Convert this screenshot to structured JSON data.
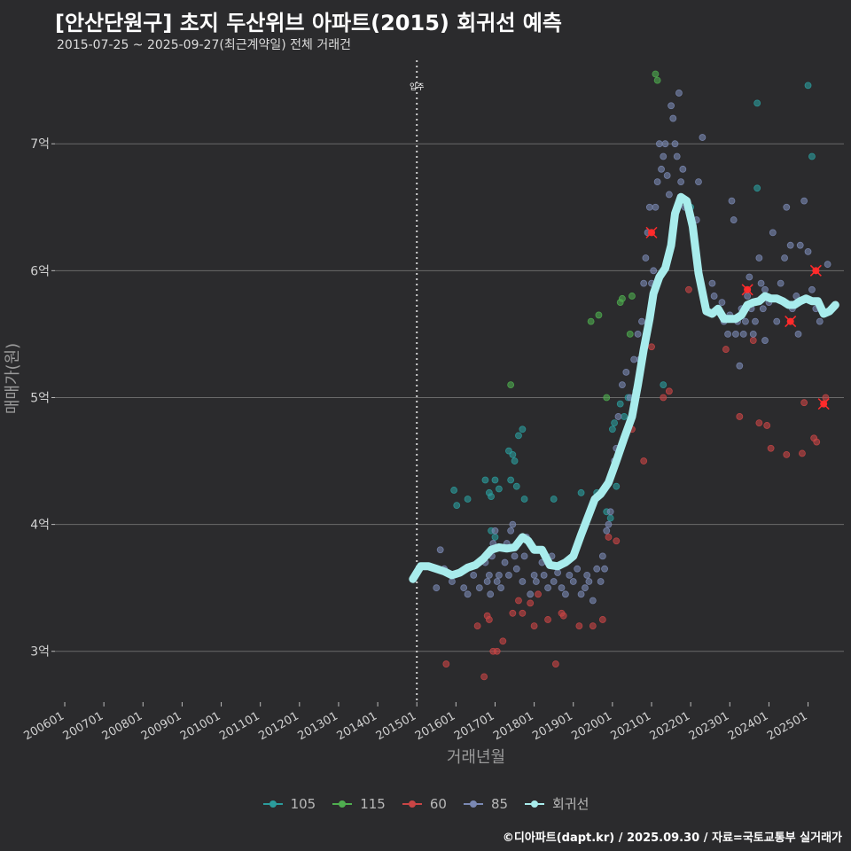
{
  "header": {
    "title": "[안산단원구] 초지 두산위브 아파트(2015) 회귀선 예측",
    "subtitle": "2015-07-25 ~ 2025-09-27(최근계약일) 전체 거래건"
  },
  "caption": "©디아파트(dapt.kr) / 2025.09.30 / 자료=국토교통부 실거래가",
  "colors": {
    "background": "#2b2b2d",
    "grid": "#6a6a6a",
    "regression": "#a8ecec",
    "highlight_x": "#ff2b2b"
  },
  "chart_data": {
    "type": "scatter",
    "xlabel": "거래년월",
    "ylabel": "매매가(원)",
    "x_tick_labels": [
      "200601",
      "200701",
      "200801",
      "200901",
      "201001",
      "201101",
      "201201",
      "201301",
      "201401",
      "201501",
      "201601",
      "201701",
      "201801",
      "201901",
      "202001",
      "202101",
      "202201",
      "202301",
      "202401",
      "202501"
    ],
    "y_tick_labels": [
      "3억",
      "4억",
      "5억",
      "6억",
      "7억"
    ],
    "y_ticks": [
      3,
      4,
      5,
      6,
      7
    ],
    "xlim": [
      "2005-10",
      "2025-12"
    ],
    "ylim": [
      2.6,
      7.7
    ],
    "annotation": {
      "label": "입주",
      "x": 2015.0
    },
    "legend_position": "bottom",
    "series": [
      {
        "name": "105",
        "color": "#2b9c9c",
        "points": [
          [
            2015.95,
            4.27
          ],
          [
            2016.3,
            4.2
          ],
          [
            2016.02,
            4.15
          ],
          [
            2016.75,
            4.35
          ],
          [
            2016.85,
            4.25
          ],
          [
            2016.9,
            4.22
          ],
          [
            2017.0,
            4.35
          ],
          [
            2017.1,
            4.28
          ],
          [
            2017.35,
            4.58
          ],
          [
            2017.45,
            4.55
          ],
          [
            2017.5,
            4.5
          ],
          [
            2017.55,
            4.3
          ],
          [
            2017.6,
            4.7
          ],
          [
            2017.7,
            4.75
          ],
          [
            2017.75,
            4.2
          ],
          [
            2017.4,
            4.35
          ],
          [
            2018.5,
            4.2
          ],
          [
            2019.2,
            4.25
          ],
          [
            2019.6,
            4.25
          ],
          [
            2019.85,
            4.1
          ],
          [
            2020.0,
            4.75
          ],
          [
            2020.05,
            4.8
          ],
          [
            2020.2,
            4.95
          ],
          [
            2020.3,
            4.85
          ],
          [
            2020.4,
            5.0
          ],
          [
            2020.6,
            5.05
          ],
          [
            2021.3,
            5.1
          ],
          [
            2022.0,
            6.5
          ],
          [
            2023.7,
            6.65
          ],
          [
            2023.7,
            7.32
          ],
          [
            2025.0,
            7.46
          ],
          [
            2025.1,
            6.9
          ],
          [
            2016.9,
            3.95
          ],
          [
            2017.0,
            3.9
          ],
          [
            2019.95,
            4.05
          ],
          [
            2020.1,
            4.3
          ]
        ]
      },
      {
        "name": "115",
        "color": "#4fae4f",
        "points": [
          [
            2017.4,
            5.1
          ],
          [
            2019.45,
            5.6
          ],
          [
            2019.65,
            5.65
          ],
          [
            2020.2,
            5.75
          ],
          [
            2020.25,
            5.78
          ],
          [
            2020.5,
            5.8
          ],
          [
            2021.1,
            7.55
          ],
          [
            2021.15,
            7.5
          ],
          [
            2019.85,
            5.0
          ],
          [
            2020.45,
            5.5
          ]
        ]
      },
      {
        "name": "60",
        "color": "#c84545",
        "points": [
          [
            2015.75,
            2.9
          ],
          [
            2016.55,
            3.2
          ],
          [
            2016.72,
            2.8
          ],
          [
            2016.8,
            3.28
          ],
          [
            2016.85,
            3.25
          ],
          [
            2016.95,
            3.0
          ],
          [
            2017.05,
            3.0
          ],
          [
            2017.2,
            3.08
          ],
          [
            2017.45,
            3.3
          ],
          [
            2017.6,
            3.4
          ],
          [
            2017.7,
            3.3
          ],
          [
            2017.9,
            3.38
          ],
          [
            2018.0,
            3.2
          ],
          [
            2018.1,
            3.45
          ],
          [
            2018.35,
            3.25
          ],
          [
            2018.55,
            2.9
          ],
          [
            2018.7,
            3.3
          ],
          [
            2018.75,
            3.28
          ],
          [
            2019.15,
            3.2
          ],
          [
            2019.5,
            3.2
          ],
          [
            2019.75,
            3.25
          ],
          [
            2019.9,
            3.9
          ],
          [
            2020.1,
            3.87
          ],
          [
            2020.5,
            4.75
          ],
          [
            2020.8,
            4.5
          ],
          [
            2021.0,
            5.4
          ],
          [
            2021.3,
            5.0
          ],
          [
            2021.45,
            5.05
          ],
          [
            2021.95,
            5.85
          ],
          [
            2023.25,
            4.85
          ],
          [
            2023.75,
            4.8
          ],
          [
            2023.95,
            4.78
          ],
          [
            2024.05,
            4.6
          ],
          [
            2024.45,
            4.55
          ],
          [
            2024.85,
            4.56
          ],
          [
            2024.9,
            4.96
          ],
          [
            2025.15,
            4.68
          ],
          [
            2025.22,
            4.65
          ],
          [
            2025.45,
            5.0
          ],
          [
            2022.9,
            5.38
          ],
          [
            2023.6,
            5.45
          ]
        ]
      },
      {
        "name": "85",
        "color": "#7a88b3",
        "points": [
          [
            2015.5,
            3.5
          ],
          [
            2015.6,
            3.8
          ],
          [
            2015.7,
            3.65
          ],
          [
            2015.9,
            3.55
          ],
          [
            2016.2,
            3.5
          ],
          [
            2016.3,
            3.45
          ],
          [
            2016.45,
            3.6
          ],
          [
            2016.6,
            3.5
          ],
          [
            2016.75,
            3.7
          ],
          [
            2016.8,
            3.55
          ],
          [
            2016.85,
            3.6
          ],
          [
            2016.88,
            3.45
          ],
          [
            2016.92,
            3.75
          ],
          [
            2016.95,
            3.85
          ],
          [
            2017.0,
            3.95
          ],
          [
            2017.05,
            3.55
          ],
          [
            2017.1,
            3.6
          ],
          [
            2017.15,
            3.5
          ],
          [
            2017.25,
            3.7
          ],
          [
            2017.3,
            3.85
          ],
          [
            2017.35,
            3.6
          ],
          [
            2017.4,
            3.95
          ],
          [
            2017.45,
            4.0
          ],
          [
            2017.5,
            3.75
          ],
          [
            2017.55,
            3.65
          ],
          [
            2017.6,
            3.85
          ],
          [
            2017.7,
            3.55
          ],
          [
            2017.75,
            3.75
          ],
          [
            2017.8,
            3.9
          ],
          [
            2017.9,
            3.45
          ],
          [
            2018.0,
            3.6
          ],
          [
            2018.05,
            3.55
          ],
          [
            2018.1,
            3.8
          ],
          [
            2018.2,
            3.7
          ],
          [
            2018.25,
            3.6
          ],
          [
            2018.35,
            3.5
          ],
          [
            2018.45,
            3.75
          ],
          [
            2018.5,
            3.55
          ],
          [
            2018.6,
            3.62
          ],
          [
            2018.7,
            3.5
          ],
          [
            2018.8,
            3.45
          ],
          [
            2018.9,
            3.6
          ],
          [
            2019.0,
            3.55
          ],
          [
            2019.1,
            3.65
          ],
          [
            2019.2,
            3.45
          ],
          [
            2019.3,
            3.5
          ],
          [
            2019.35,
            3.6
          ],
          [
            2019.4,
            3.55
          ],
          [
            2019.5,
            3.4
          ],
          [
            2019.6,
            3.65
          ],
          [
            2019.7,
            3.55
          ],
          [
            2019.75,
            3.75
          ],
          [
            2019.8,
            3.65
          ],
          [
            2019.85,
            3.95
          ],
          [
            2019.9,
            4.0
          ],
          [
            2019.95,
            4.1
          ],
          [
            2020.05,
            4.5
          ],
          [
            2020.1,
            4.6
          ],
          [
            2020.15,
            4.85
          ],
          [
            2020.25,
            5.1
          ],
          [
            2020.35,
            5.2
          ],
          [
            2020.45,
            5.0
          ],
          [
            2020.55,
            5.3
          ],
          [
            2020.65,
            5.5
          ],
          [
            2020.7,
            5.3
          ],
          [
            2020.75,
            5.6
          ],
          [
            2020.8,
            5.9
          ],
          [
            2020.85,
            6.1
          ],
          [
            2020.9,
            6.3
          ],
          [
            2020.95,
            6.5
          ],
          [
            2021.0,
            5.9
          ],
          [
            2021.05,
            6.0
          ],
          [
            2021.1,
            6.5
          ],
          [
            2021.15,
            6.7
          ],
          [
            2021.2,
            7.0
          ],
          [
            2021.25,
            6.8
          ],
          [
            2021.3,
            6.9
          ],
          [
            2021.35,
            7.0
          ],
          [
            2021.4,
            6.75
          ],
          [
            2021.45,
            6.6
          ],
          [
            2021.5,
            7.3
          ],
          [
            2021.55,
            7.2
          ],
          [
            2021.6,
            7.0
          ],
          [
            2021.65,
            6.9
          ],
          [
            2021.7,
            7.4
          ],
          [
            2021.75,
            6.7
          ],
          [
            2021.8,
            6.8
          ],
          [
            2021.85,
            6.5
          ],
          [
            2022.15,
            6.4
          ],
          [
            2022.2,
            6.7
          ],
          [
            2022.3,
            7.05
          ],
          [
            2022.55,
            5.9
          ],
          [
            2022.6,
            5.8
          ],
          [
            2022.7,
            5.7
          ],
          [
            2022.8,
            5.75
          ],
          [
            2022.85,
            5.6
          ],
          [
            2022.95,
            5.5
          ],
          [
            2023.0,
            5.65
          ],
          [
            2023.05,
            6.55
          ],
          [
            2023.1,
            6.4
          ],
          [
            2023.15,
            5.5
          ],
          [
            2023.2,
            5.6
          ],
          [
            2023.3,
            5.7
          ],
          [
            2023.35,
            5.5
          ],
          [
            2023.4,
            5.6
          ],
          [
            2023.45,
            5.8
          ],
          [
            2023.5,
            5.95
          ],
          [
            2023.55,
            5.7
          ],
          [
            2023.6,
            5.5
          ],
          [
            2023.65,
            5.6
          ],
          [
            2023.75,
            6.1
          ],
          [
            2023.8,
            5.9
          ],
          [
            2023.85,
            5.7
          ],
          [
            2023.9,
            5.85
          ],
          [
            2024.0,
            5.75
          ],
          [
            2024.1,
            6.3
          ],
          [
            2024.2,
            5.6
          ],
          [
            2024.3,
            5.9
          ],
          [
            2024.4,
            6.1
          ],
          [
            2024.45,
            6.5
          ],
          [
            2024.55,
            6.2
          ],
          [
            2024.6,
            5.7
          ],
          [
            2024.7,
            5.8
          ],
          [
            2024.8,
            6.2
          ],
          [
            2024.9,
            6.55
          ],
          [
            2025.0,
            6.15
          ],
          [
            2025.1,
            5.85
          ],
          [
            2025.2,
            5.7
          ],
          [
            2025.3,
            5.6
          ],
          [
            2025.5,
            6.05
          ],
          [
            2023.25,
            5.25
          ],
          [
            2023.9,
            5.45
          ],
          [
            2024.75,
            5.5
          ]
        ]
      }
    ],
    "regression": {
      "name": "회귀선",
      "color": "#a8ecec",
      "points": [
        [
          2014.9,
          3.57
        ],
        [
          2015.0,
          3.62
        ],
        [
          2015.1,
          3.67
        ],
        [
          2015.3,
          3.67
        ],
        [
          2015.5,
          3.65
        ],
        [
          2015.7,
          3.63
        ],
        [
          2015.9,
          3.6
        ],
        [
          2016.1,
          3.62
        ],
        [
          2016.3,
          3.66
        ],
        [
          2016.5,
          3.68
        ],
        [
          2016.7,
          3.73
        ],
        [
          2016.9,
          3.8
        ],
        [
          2017.1,
          3.82
        ],
        [
          2017.3,
          3.81
        ],
        [
          2017.5,
          3.82
        ],
        [
          2017.7,
          3.9
        ],
        [
          2017.85,
          3.87
        ],
        [
          2018.0,
          3.8
        ],
        [
          2018.2,
          3.8
        ],
        [
          2018.4,
          3.68
        ],
        [
          2018.6,
          3.67
        ],
        [
          2018.8,
          3.7
        ],
        [
          2019.0,
          3.75
        ],
        [
          2019.2,
          3.92
        ],
        [
          2019.4,
          4.08
        ],
        [
          2019.55,
          4.2
        ],
        [
          2019.7,
          4.24
        ],
        [
          2019.9,
          4.33
        ],
        [
          2020.1,
          4.5
        ],
        [
          2020.3,
          4.68
        ],
        [
          2020.5,
          4.85
        ],
        [
          2020.65,
          5.1
        ],
        [
          2020.8,
          5.38
        ],
        [
          2020.95,
          5.62
        ],
        [
          2021.05,
          5.82
        ],
        [
          2021.2,
          5.95
        ],
        [
          2021.35,
          6.02
        ],
        [
          2021.5,
          6.2
        ],
        [
          2021.6,
          6.45
        ],
        [
          2021.75,
          6.58
        ],
        [
          2021.9,
          6.55
        ],
        [
          2022.05,
          6.35
        ],
        [
          2022.2,
          5.98
        ],
        [
          2022.4,
          5.68
        ],
        [
          2022.55,
          5.66
        ],
        [
          2022.7,
          5.7
        ],
        [
          2022.85,
          5.62
        ],
        [
          2023.0,
          5.62
        ],
        [
          2023.15,
          5.62
        ],
        [
          2023.3,
          5.65
        ],
        [
          2023.45,
          5.73
        ],
        [
          2023.6,
          5.75
        ],
        [
          2023.75,
          5.76
        ],
        [
          2023.9,
          5.8
        ],
        [
          2024.05,
          5.78
        ],
        [
          2024.2,
          5.78
        ],
        [
          2024.35,
          5.76
        ],
        [
          2024.5,
          5.73
        ],
        [
          2024.65,
          5.73
        ],
        [
          2024.8,
          5.76
        ],
        [
          2024.95,
          5.78
        ],
        [
          2025.1,
          5.76
        ],
        [
          2025.25,
          5.76
        ],
        [
          2025.4,
          5.66
        ],
        [
          2025.55,
          5.68
        ],
        [
          2025.7,
          5.73
        ]
      ]
    },
    "highlighted_transactions": [
      [
        2021.0,
        6.3
      ],
      [
        2023.45,
        5.85
      ],
      [
        2024.55,
        5.6
      ],
      [
        2025.2,
        6.0
      ],
      [
        2025.4,
        4.95
      ]
    ]
  },
  "legend": {
    "items": [
      {
        "label": "105",
        "color": "#2b9c9c"
      },
      {
        "label": "115",
        "color": "#4fae4f"
      },
      {
        "label": "60",
        "color": "#c84545"
      },
      {
        "label": "85",
        "color": "#7a88b3"
      },
      {
        "label": "회귀선",
        "color": "#a8ecec"
      }
    ]
  }
}
